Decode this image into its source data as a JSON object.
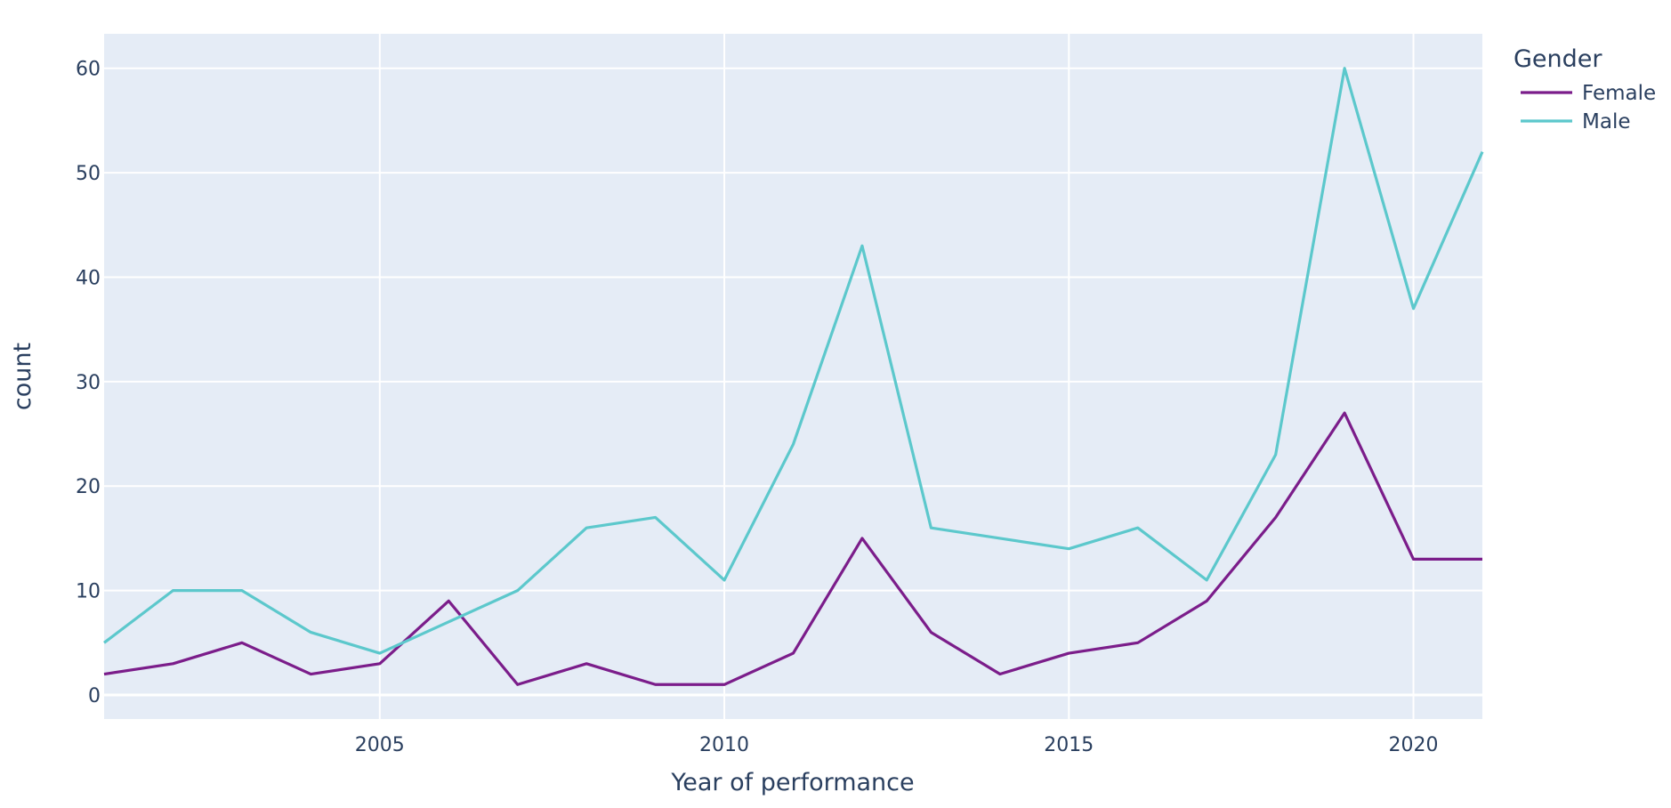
{
  "chart_data": {
    "type": "line",
    "title": "",
    "xlabel": "Year of performance",
    "ylabel": "count",
    "x": [
      2001,
      2002,
      2003,
      2004,
      2005,
      2006,
      2007,
      2008,
      2009,
      2010,
      2011,
      2012,
      2013,
      2014,
      2015,
      2016,
      2017,
      2018,
      2019,
      2020,
      2021
    ],
    "series": [
      {
        "name": "Female",
        "color": "#7b1d8a",
        "values": [
          2,
          3,
          5,
          2,
          3,
          9,
          1,
          3,
          1,
          1,
          4,
          15,
          6,
          2,
          4,
          5,
          9,
          17,
          27,
          13,
          13
        ]
      },
      {
        "name": "Male",
        "color": "#5cc8cc",
        "values": [
          5,
          10,
          10,
          6,
          4,
          7,
          10,
          16,
          17,
          11,
          24,
          43,
          16,
          15,
          14,
          16,
          11,
          23,
          60,
          37,
          52
        ]
      }
    ],
    "xlim": [
      2001,
      2021
    ],
    "ylim": [
      -2.3,
      63.3
    ],
    "xticks": [
      2005,
      2010,
      2015,
      2020
    ],
    "yticks": [
      0,
      10,
      20,
      30,
      40,
      50,
      60
    ],
    "grid": true,
    "legend": {
      "title": "Gender",
      "placement": "right"
    },
    "colors": {
      "plot_background": "#e5ecf6",
      "grid": "#ffffff",
      "text": "#2a3f5f"
    }
  }
}
